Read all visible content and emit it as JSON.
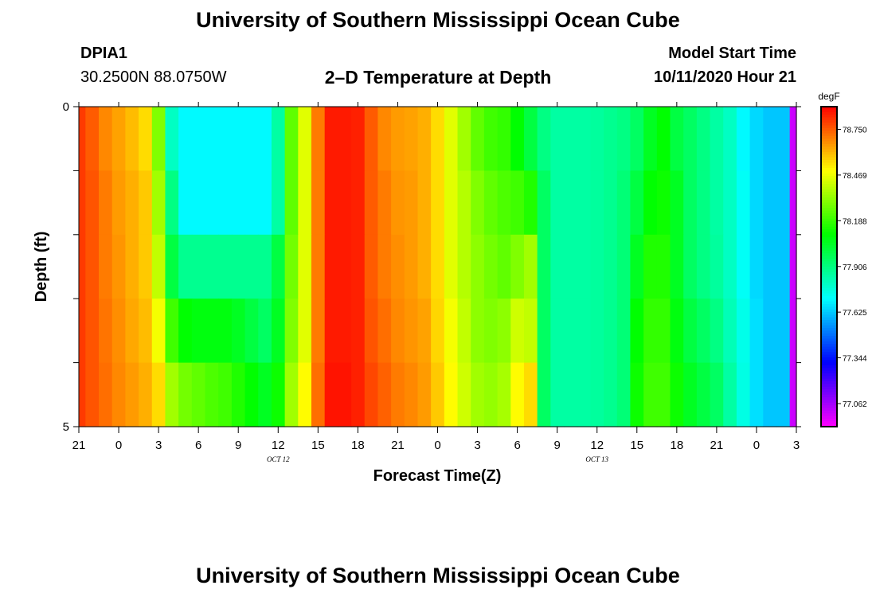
{
  "header": {
    "title": "University of Southern Mississippi Ocean Cube",
    "station_id": "DPIA1",
    "coordinates": "30.2500N 88.0750W",
    "plot_title": "2–D Temperature at Depth",
    "model_start_label": "Model Start Time",
    "model_start_value": "10/11/2020 Hour 21"
  },
  "footer": {
    "title": "University of Southern Mississippi Ocean Cube"
  },
  "chart_data": {
    "type": "heatmap",
    "title": "2–D Temperature at Depth",
    "xlabel": "Forecast Time(Z)",
    "ylabel": "Depth (ft)",
    "x_tick_labels": [
      "21",
      "0",
      "3",
      "6",
      "9",
      "12",
      "15",
      "18",
      "21",
      "0",
      "3",
      "6",
      "9",
      "12",
      "15",
      "18",
      "21",
      "0",
      "3"
    ],
    "x_date_labels": [
      {
        "label": "OCT 12",
        "hour_offset": 15
      },
      {
        "label": "OCT 13",
        "hour_offset": 39
      }
    ],
    "x_range_hours": [
      0,
      54
    ],
    "y_tick_labels": [
      "0",
      "5"
    ],
    "y_range_ft": [
      0,
      5
    ],
    "colorbar": {
      "units": "degF",
      "labels": [
        "78.750",
        "78.469",
        "78.188",
        "77.906",
        "77.625",
        "77.344",
        "77.062"
      ],
      "min": 76.92,
      "max": 78.89
    },
    "depth_layers": [
      0.5,
      1.5,
      2.5,
      3.5,
      4.5
    ],
    "time_hours": [
      0,
      1,
      2,
      3,
      4,
      5,
      6,
      7,
      8,
      9,
      10,
      11,
      12,
      13,
      14,
      15,
      16,
      17,
      18,
      19,
      20,
      21,
      22,
      23,
      24,
      25,
      26,
      27,
      28,
      29,
      30,
      31,
      32,
      33,
      34,
      35,
      36,
      37,
      38,
      39,
      40,
      41,
      42,
      43,
      44,
      45,
      46,
      47,
      48,
      49,
      50,
      51,
      52,
      53,
      54
    ],
    "temperature_degF": [
      [
        78.8,
        78.75,
        78.68,
        78.64,
        78.6,
        78.55,
        78.3,
        77.8,
        77.7,
        77.7,
        77.7,
        77.7,
        77.7,
        77.7,
        77.7,
        77.85,
        78.25,
        78.45,
        78.7,
        78.85,
        78.85,
        78.84,
        78.75,
        78.68,
        78.65,
        78.64,
        78.62,
        78.55,
        78.45,
        78.35,
        78.25,
        78.2,
        78.18,
        78.1,
        78.0,
        77.9,
        77.85,
        77.85,
        77.85,
        77.86,
        77.88,
        77.9,
        77.95,
        78.05,
        78.1,
        78.0,
        77.95,
        77.9,
        77.85,
        77.8,
        77.7,
        77.65,
        77.62,
        77.62,
        77.0
      ],
      [
        78.8,
        78.76,
        78.7,
        78.65,
        78.62,
        78.58,
        78.35,
        77.9,
        77.7,
        77.7,
        77.7,
        77.7,
        77.7,
        77.7,
        77.7,
        77.85,
        78.25,
        78.45,
        78.7,
        78.85,
        78.85,
        78.84,
        78.75,
        78.7,
        78.66,
        78.65,
        78.62,
        78.55,
        78.45,
        78.38,
        78.3,
        78.25,
        78.22,
        78.2,
        78.15,
        77.95,
        77.85,
        77.85,
        77.85,
        77.86,
        77.88,
        77.92,
        78.0,
        78.1,
        78.12,
        78.05,
        77.95,
        77.9,
        77.85,
        77.8,
        77.72,
        77.65,
        77.62,
        77.62,
        77.0
      ],
      [
        78.8,
        78.76,
        78.7,
        78.66,
        78.62,
        78.58,
        78.4,
        78.0,
        77.88,
        77.88,
        77.88,
        77.88,
        77.88,
        77.88,
        77.88,
        78.0,
        78.28,
        78.45,
        78.7,
        78.85,
        78.85,
        78.84,
        78.75,
        78.7,
        78.67,
        78.65,
        78.62,
        78.55,
        78.45,
        78.38,
        78.32,
        78.28,
        78.25,
        78.3,
        78.35,
        77.95,
        77.85,
        77.85,
        77.85,
        77.86,
        77.88,
        77.92,
        78.05,
        78.15,
        78.15,
        78.05,
        77.95,
        77.9,
        77.86,
        77.8,
        77.72,
        77.65,
        77.62,
        77.62,
        77.0
      ],
      [
        78.8,
        78.76,
        78.71,
        78.67,
        78.63,
        78.6,
        78.48,
        78.2,
        78.1,
        78.08,
        78.08,
        78.08,
        78.05,
        78.0,
        77.95,
        78.05,
        78.3,
        78.45,
        78.7,
        78.85,
        78.85,
        78.84,
        78.76,
        78.72,
        78.68,
        78.66,
        78.64,
        78.56,
        78.48,
        78.4,
        78.32,
        78.3,
        78.32,
        78.42,
        78.4,
        77.95,
        77.85,
        77.85,
        77.85,
        77.86,
        77.88,
        77.92,
        78.1,
        78.18,
        78.18,
        78.08,
        78.0,
        77.95,
        77.9,
        77.82,
        77.74,
        77.66,
        77.62,
        77.62,
        77.0
      ],
      [
        78.8,
        78.76,
        78.72,
        78.68,
        78.65,
        78.62,
        78.55,
        78.35,
        78.28,
        78.25,
        78.22,
        78.2,
        78.15,
        78.1,
        78.05,
        78.12,
        78.35,
        78.5,
        78.72,
        78.86,
        78.86,
        78.84,
        78.78,
        78.74,
        78.7,
        78.68,
        78.65,
        78.58,
        78.5,
        78.42,
        78.35,
        78.33,
        78.36,
        78.5,
        78.55,
        77.95,
        77.85,
        77.85,
        77.85,
        77.86,
        77.88,
        77.92,
        78.12,
        78.2,
        78.2,
        78.12,
        78.05,
        78.0,
        77.95,
        77.85,
        77.75,
        77.66,
        77.62,
        77.62,
        77.0
      ]
    ]
  }
}
